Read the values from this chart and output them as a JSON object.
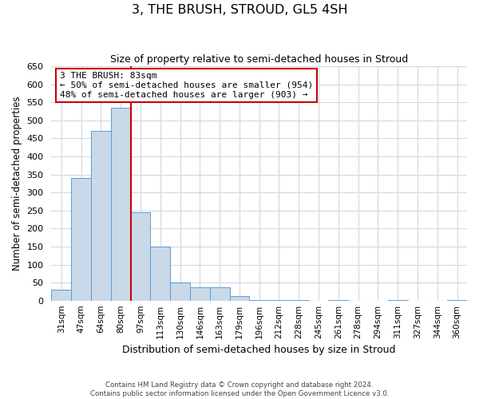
{
  "title": "3, THE BRUSH, STROUD, GL5 4SH",
  "subtitle": "Size of property relative to semi-detached houses in Stroud",
  "xlabel": "Distribution of semi-detached houses by size in Stroud",
  "ylabel": "Number of semi-detached properties",
  "categories": [
    "31sqm",
    "47sqm",
    "64sqm",
    "80sqm",
    "97sqm",
    "113sqm",
    "130sqm",
    "146sqm",
    "163sqm",
    "179sqm",
    "196sqm",
    "212sqm",
    "228sqm",
    "245sqm",
    "261sqm",
    "278sqm",
    "294sqm",
    "311sqm",
    "327sqm",
    "344sqm",
    "360sqm"
  ],
  "bar_counts": [
    30,
    340,
    470,
    535,
    245,
    150,
    50,
    38,
    37,
    12,
    2,
    2,
    2,
    0,
    2,
    0,
    0,
    2,
    0,
    0,
    2
  ],
  "bar_color": "#c9d9e8",
  "bar_edge_color": "#5b9bd5",
  "vline_x": 3.5,
  "vline_color": "#cc0000",
  "annotation_title": "3 THE BRUSH: 83sqm",
  "annotation_line1": "← 50% of semi-detached houses are smaller (954)",
  "annotation_line2": "48% of semi-detached houses are larger (903) →",
  "annotation_box_color": "#cc0000",
  "ylim": [
    0,
    650
  ],
  "yticks": [
    0,
    50,
    100,
    150,
    200,
    250,
    300,
    350,
    400,
    450,
    500,
    550,
    600,
    650
  ],
  "footer_line1": "Contains HM Land Registry data © Crown copyright and database right 2024.",
  "footer_line2": "Contains public sector information licensed under the Open Government Licence v3.0.",
  "bg_color": "#ffffff",
  "grid_color": "#d0d8e4"
}
